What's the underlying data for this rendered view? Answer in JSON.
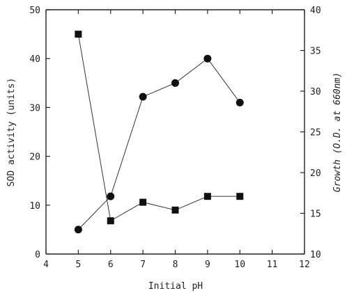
{
  "chart_data": {
    "type": "line",
    "xlabel": "Initial pH",
    "ylabel_left": "SOD activity (units)",
    "ylabel_right": "Growth (O.D. at 660nm)",
    "xlim": [
      4,
      12
    ],
    "ylim_left": [
      0,
      50
    ],
    "ylim_right": [
      10,
      40
    ],
    "x_ticks": [
      4,
      5,
      6,
      7,
      8,
      9,
      10,
      11,
      12
    ],
    "y_left_ticks": [
      0,
      10,
      20,
      30,
      40,
      50
    ],
    "y_right_ticks": [
      10,
      15,
      20,
      25,
      30,
      35,
      40
    ],
    "grid": false,
    "series": [
      {
        "marker": "circle",
        "axis": "left",
        "color": "#111111",
        "x": [
          5,
          6,
          7,
          8,
          9,
          10
        ],
        "y": [
          5,
          11.8,
          32.2,
          35,
          40,
          31
        ]
      },
      {
        "marker": "square",
        "axis": "left",
        "color": "#111111",
        "x": [
          5,
          6,
          7,
          8,
          9,
          10
        ],
        "y": [
          45,
          6.8,
          10.6,
          9,
          11.8,
          11.8
        ]
      }
    ]
  }
}
